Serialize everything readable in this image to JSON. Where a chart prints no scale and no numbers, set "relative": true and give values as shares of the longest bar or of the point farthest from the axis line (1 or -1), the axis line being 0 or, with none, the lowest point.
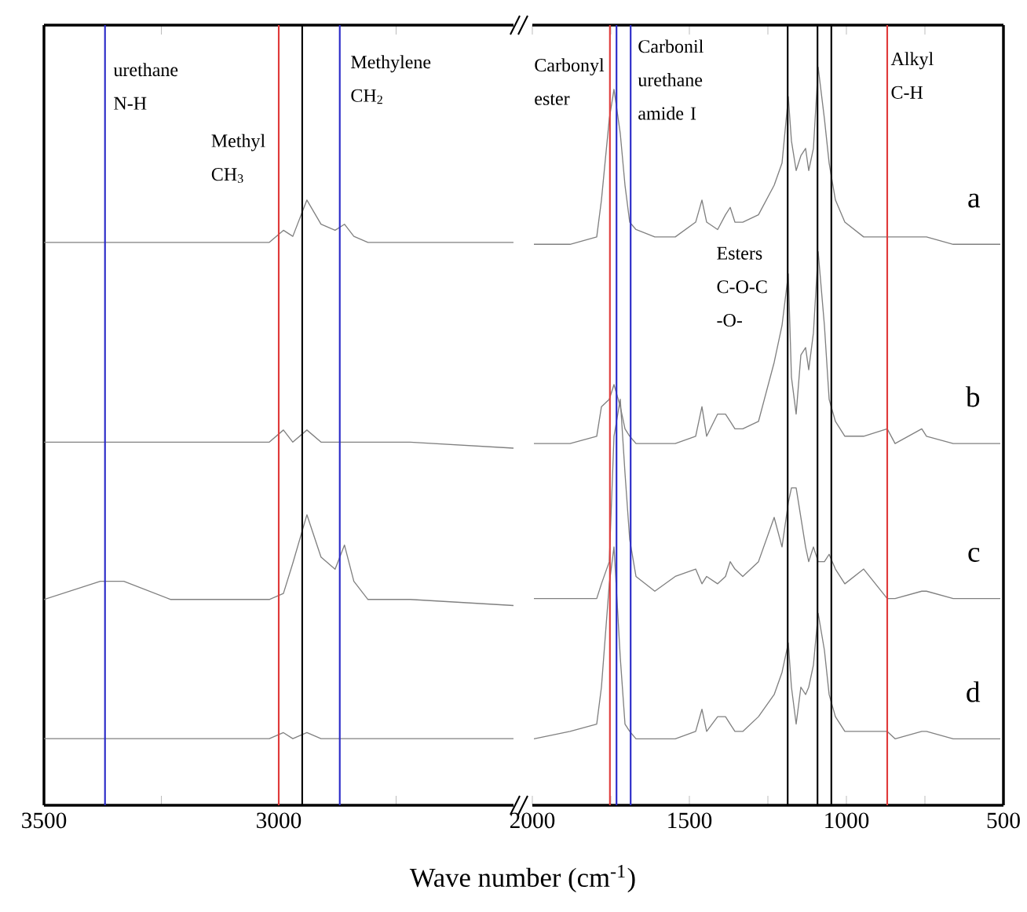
{
  "chart_data": [
    {
      "type": "line",
      "relative": true,
      "xlabel": "Wave number (cm$^{-1}$)",
      "tick_labels": "x",
      "x": [
        3500,
        3380,
        3330,
        3230,
        3090,
        3020,
        2990,
        2970,
        2940,
        2910,
        2880,
        2860,
        2840,
        2810,
        2720,
        2500
      ],
      "xlim": [
        3500,
        2500
      ],
      "xticks": [
        3500,
        {
          "value": 3250,
          "label": null
        },
        3000,
        {
          "value": 2750,
          "label": null
        }
      ],
      "series": [
        {
          "color": "#808080",
          "values": [
            0.93,
            0.93,
            0.93,
            0.93,
            0.93,
            0.93,
            0.95,
            0.94,
            1.0,
            0.96,
            0.95,
            0.96,
            0.94,
            0.93,
            0.93,
            0.93
          ]
        },
        {
          "color": "#808080",
          "values": [
            0.6,
            0.6,
            0.6,
            0.6,
            0.6,
            0.6,
            0.62,
            0.6,
            0.62,
            0.6,
            0.6,
            0.6,
            0.6,
            0.6,
            0.6,
            0.59
          ]
        },
        {
          "color": "#808080",
          "values": [
            0.34,
            0.37,
            0.37,
            0.34,
            0.34,
            0.34,
            0.35,
            0.4,
            0.48,
            0.41,
            0.39,
            0.43,
            0.37,
            0.34,
            0.34,
            0.33
          ]
        },
        {
          "color": "#808080",
          "values": [
            0.11,
            0.11,
            0.11,
            0.11,
            0.11,
            0.11,
            0.12,
            0.11,
            0.12,
            0.11,
            0.11,
            0.11,
            0.11,
            0.11,
            0.11,
            0.11
          ]
        }
      ],
      "ref_lines": [
        {
          "axis": "x",
          "value": 3370,
          "color": "#2a2ac8"
        },
        {
          "axis": "x",
          "value": 3000,
          "color": "#e03a3a"
        },
        {
          "axis": "x",
          "value": 2950,
          "color": "#000000"
        },
        {
          "axis": "x",
          "value": 2870,
          "color": "#2a2ac8"
        }
      ],
      "annotations": [
        "urethane N-H",
        "Methyl CH$_{3}$",
        "Methylene CH$_{2}$"
      ]
    },
    {
      "type": "line",
      "relative": true,
      "tick_labels": "x",
      "x": [
        1995,
        1880,
        1795,
        1780,
        1755,
        1740,
        1720,
        1705,
        1690,
        1670,
        1610,
        1545,
        1480,
        1460,
        1445,
        1410,
        1385,
        1370,
        1355,
        1330,
        1280,
        1230,
        1205,
        1185,
        1175,
        1160,
        1145,
        1130,
        1120,
        1105,
        1090,
        1070,
        1055,
        1035,
        1005,
        945,
        870,
        845,
        760,
        745,
        660,
        510
      ],
      "xlim": [
        2000,
        500
      ],
      "xticks": [
        2000,
        {
          "value": 1750,
          "label": null
        },
        1500,
        {
          "value": 1250,
          "label": null
        },
        1000,
        {
          "value": 750,
          "label": null
        },
        500
      ],
      "series": [
        {
          "name": "a",
          "color": "#808080",
          "values": [
            0.76,
            0.76,
            0.77,
            0.82,
            0.93,
            0.97,
            0.91,
            0.84,
            0.79,
            0.78,
            0.77,
            0.77,
            0.79,
            0.82,
            0.79,
            0.78,
            0.8,
            0.81,
            0.79,
            0.79,
            0.8,
            0.84,
            0.87,
            0.96,
            0.9,
            0.86,
            0.88,
            0.89,
            0.86,
            0.89,
            1.0,
            0.93,
            0.87,
            0.82,
            0.79,
            0.77,
            0.77,
            0.77,
            0.77,
            0.77,
            0.76,
            0.76
          ]
        },
        {
          "name": "b",
          "color": "#808080",
          "values": [
            0.49,
            0.49,
            0.5,
            0.54,
            0.55,
            0.57,
            0.54,
            0.51,
            0.5,
            0.49,
            0.49,
            0.49,
            0.5,
            0.54,
            0.5,
            0.53,
            0.53,
            0.52,
            0.51,
            0.51,
            0.52,
            0.6,
            0.65,
            0.72,
            0.58,
            0.53,
            0.61,
            0.62,
            0.59,
            0.64,
            0.75,
            0.65,
            0.55,
            0.52,
            0.5,
            0.5,
            0.51,
            0.49,
            0.51,
            0.5,
            0.49,
            0.49
          ]
        },
        {
          "name": "c",
          "color": "#808080",
          "values": [
            0.28,
            0.28,
            0.28,
            0.3,
            0.33,
            0.5,
            0.55,
            0.45,
            0.36,
            0.31,
            0.29,
            0.31,
            0.32,
            0.3,
            0.31,
            0.3,
            0.31,
            0.33,
            0.32,
            0.31,
            0.33,
            0.39,
            0.35,
            0.41,
            0.43,
            0.43,
            0.39,
            0.35,
            0.33,
            0.35,
            0.33,
            0.33,
            0.34,
            0.32,
            0.3,
            0.32,
            0.28,
            0.28,
            0.29,
            0.29,
            0.28,
            0.28
          ]
        },
        {
          "name": "d",
          "color": "#808080",
          "values": [
            0.09,
            0.1,
            0.11,
            0.16,
            0.3,
            0.35,
            0.2,
            0.11,
            0.1,
            0.09,
            0.09,
            0.09,
            0.1,
            0.13,
            0.1,
            0.12,
            0.12,
            0.11,
            0.1,
            0.1,
            0.12,
            0.15,
            0.18,
            0.22,
            0.16,
            0.11,
            0.16,
            0.15,
            0.16,
            0.19,
            0.26,
            0.21,
            0.15,
            0.12,
            0.1,
            0.1,
            0.1,
            0.09,
            0.1,
            0.1,
            0.09,
            0.09
          ]
        }
      ],
      "ref_lines": [
        {
          "axis": "x",
          "value": 1753,
          "color": "#e03a3a"
        },
        {
          "axis": "x",
          "value": 1732,
          "color": "#2a2ac8"
        },
        {
          "axis": "x",
          "value": 1687,
          "color": "#2a2ac8"
        },
        {
          "axis": "x",
          "value": 1187,
          "color": "#000000"
        },
        {
          "axis": "x",
          "value": 1092,
          "color": "#000000"
        },
        {
          "axis": "x",
          "value": 1048,
          "color": "#000000"
        },
        {
          "axis": "x",
          "value": 870,
          "color": "#e03a3a"
        }
      ],
      "annotations": [
        "Carbonyl ester",
        "Carbonil urethane amide I",
        "Esters C-O-C -O-",
        "Alkyl C-H"
      ]
    }
  ]
}
